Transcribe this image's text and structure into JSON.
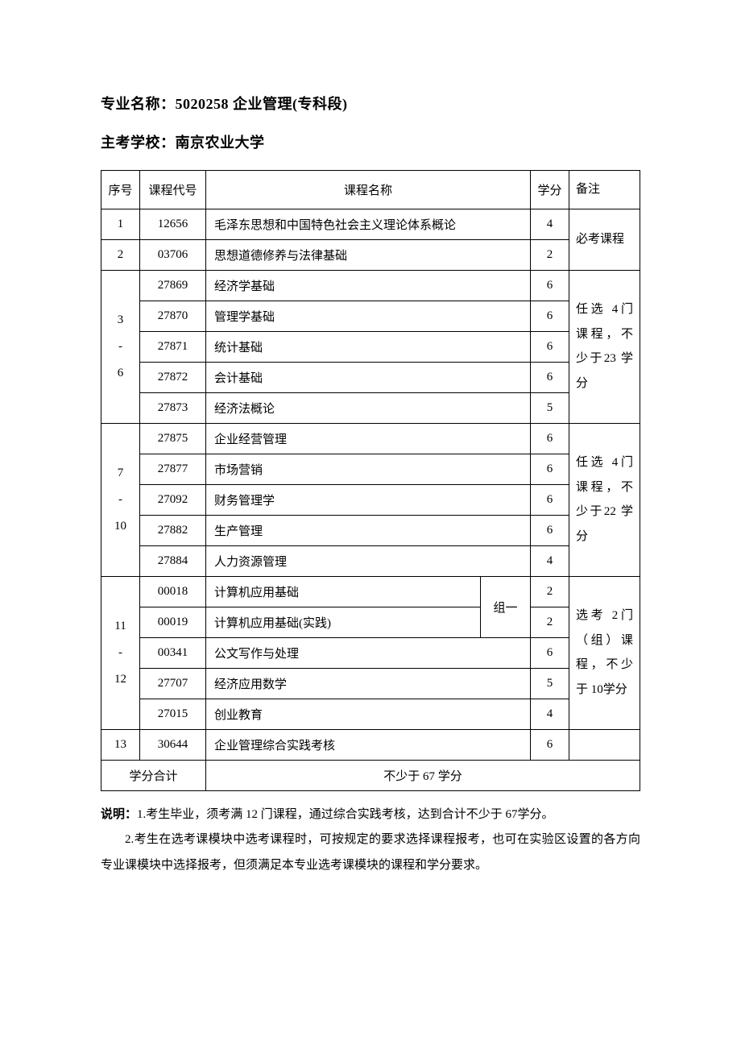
{
  "header": {
    "major_label": "专业名称：",
    "major_value": "5020258 企业管理(专科段)",
    "school_label": "主考学校：",
    "school_value": "南京农业大学"
  },
  "table": {
    "columns": {
      "seq": "序号",
      "code": "课程代号",
      "name": "课程名称",
      "credit": "学分",
      "note": "备注"
    },
    "group_label": "组一",
    "seq_labels": {
      "g1a": "1",
      "g1b": "2",
      "g2": "3\n-\n6",
      "g3": "7\n-\n10",
      "g4": "11\n-\n12",
      "g5": "13"
    },
    "notes": {
      "n1": "必考课程",
      "n2": "任选 4门课程，不少于23 学分",
      "n3": "任选 4门课程，不少于22 学分",
      "n4": "选考 2门（组）课程，不少于 10学分"
    },
    "rows": [
      {
        "code": "12656",
        "name": "毛泽东思想和中国特色社会主义理论体系概论",
        "credit": "4"
      },
      {
        "code": "03706",
        "name": "思想道德修养与法律基础",
        "credit": "2"
      },
      {
        "code": "27869",
        "name": "经济学基础",
        "credit": "6"
      },
      {
        "code": "27870",
        "name": "管理学基础",
        "credit": "6"
      },
      {
        "code": "27871",
        "name": "统计基础",
        "credit": "6"
      },
      {
        "code": "27872",
        "name": "会计基础",
        "credit": "6"
      },
      {
        "code": "27873",
        "name": "经济法概论",
        "credit": "5"
      },
      {
        "code": "27875",
        "name": "企业经营管理",
        "credit": "6"
      },
      {
        "code": "27877",
        "name": "市场营销",
        "credit": "6"
      },
      {
        "code": "27092",
        "name": "财务管理学",
        "credit": "6"
      },
      {
        "code": "27882",
        "name": "生产管理",
        "credit": "6"
      },
      {
        "code": "27884",
        "name": "人力资源管理",
        "credit": "4"
      },
      {
        "code": "00018",
        "name": "计算机应用基础",
        "credit": "2"
      },
      {
        "code": "00019",
        "name": "计算机应用基础(实践)",
        "credit": "2"
      },
      {
        "code": "00341",
        "name": "公文写作与处理",
        "credit": "6"
      },
      {
        "code": "27707",
        "name": "经济应用数学",
        "credit": "5"
      },
      {
        "code": "27015",
        "name": "创业教育",
        "credit": "4"
      },
      {
        "code": "30644",
        "name": "企业管理综合实践考核",
        "credit": "6"
      }
    ],
    "summary": {
      "label": "学分合计",
      "value": "不少于 67 学分"
    }
  },
  "footnotes": {
    "label": "说明：",
    "p1": "1.考生毕业，须考满 12 门课程，通过综合实践考核，达到合计不少于 67学分。",
    "p2": "2.考生在选考课模块中选考课程时，可按规定的要求选择课程报考，也可在实验区设置的各方向专业课模块中选择报考，但须满足本专业选考课模块的课程和学分要求。"
  }
}
